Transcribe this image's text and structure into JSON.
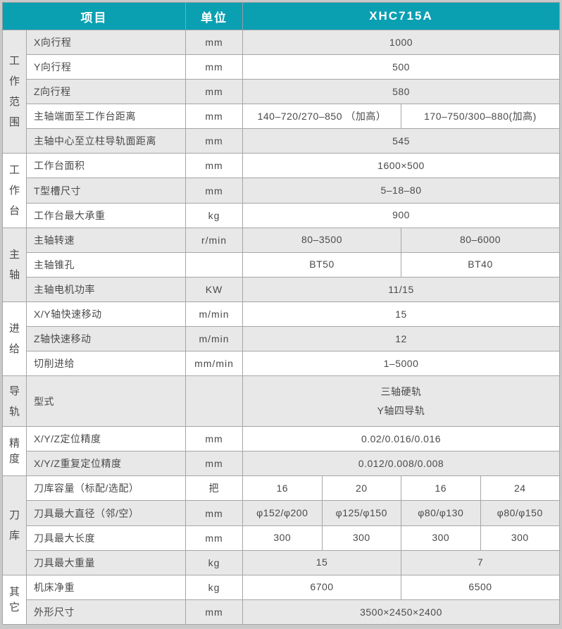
{
  "colors": {
    "accent_teal": "#0aa0b2",
    "header_text": "#ffffff",
    "row_gray": "#e8e8e8",
    "row_white": "#ffffff",
    "grid_border": "#a6a6a6",
    "outer_border": "#c9c9c9",
    "body_text": "#4a4a4a"
  },
  "table": {
    "header": {
      "item_col": "项目",
      "unit_col": "单位",
      "model_col": "XHC715A"
    },
    "sections": [
      {
        "category": "工作范围",
        "rows": [
          {
            "label": "X向行程",
            "unit": "mm",
            "values": [
              {
                "text": "1000",
                "span": 4
              }
            ]
          },
          {
            "label": "Y向行程",
            "unit": "mm",
            "values": [
              {
                "text": "500",
                "span": 4
              }
            ]
          },
          {
            "label": "Z向行程",
            "unit": "mm",
            "values": [
              {
                "text": "580",
                "span": 4
              }
            ]
          },
          {
            "label": "主轴端面至工作台距离",
            "unit": "mm",
            "values": [
              {
                "text": "140–720/270–850 （加高）",
                "span": 2
              },
              {
                "text": "170–750/300–880(加高)",
                "span": 2
              }
            ]
          },
          {
            "label": "主轴中心至立柱导轨面距离",
            "unit": "mm",
            "values": [
              {
                "text": "545",
                "span": 4
              }
            ]
          }
        ]
      },
      {
        "category": "工作台",
        "rows": [
          {
            "label": "工作台面积",
            "unit": "mm",
            "values": [
              {
                "text": "1600×500",
                "span": 4
              }
            ]
          },
          {
            "label": "T型槽尺寸",
            "unit": "mm",
            "values": [
              {
                "text": "5–18–80",
                "span": 4
              }
            ]
          },
          {
            "label": "工作台最大承重",
            "unit": "kg",
            "values": [
              {
                "text": "900",
                "span": 4
              }
            ]
          }
        ]
      },
      {
        "category": "主轴",
        "rows": [
          {
            "label": "主轴转速",
            "unit": "r/min",
            "values": [
              {
                "text": "80–3500",
                "span": 2
              },
              {
                "text": "80–6000",
                "span": 2
              }
            ]
          },
          {
            "label": "主轴锥孔",
            "unit": "",
            "values": [
              {
                "text": "BT50",
                "span": 2
              },
              {
                "text": "BT40",
                "span": 2
              }
            ]
          },
          {
            "label": "主轴电机功率",
            "unit": "KW",
            "values": [
              {
                "text": "11/15",
                "span": 4
              }
            ]
          }
        ]
      },
      {
        "category": "进给",
        "rows": [
          {
            "label": "X/Y轴快速移动",
            "unit": "m/min",
            "values": [
              {
                "text": "15",
                "span": 4
              }
            ]
          },
          {
            "label": "Z轴快速移动",
            "unit": "m/min",
            "values": [
              {
                "text": "12",
                "span": 4
              }
            ]
          },
          {
            "label": "切削进给",
            "unit": "mm/min",
            "values": [
              {
                "text": "1–5000",
                "span": 4
              }
            ]
          }
        ]
      },
      {
        "category": "导轨",
        "rows": [
          {
            "label": "型式",
            "unit": "",
            "tall": true,
            "values": [
              {
                "text": "三轴硬轨\nY轴四导轨",
                "span": 4
              }
            ]
          }
        ]
      },
      {
        "category": "精度",
        "rows": [
          {
            "label": "X/Y/Z定位精度",
            "unit": "mm",
            "values": [
              {
                "text": "0.02/0.016/0.016",
                "span": 4
              }
            ]
          },
          {
            "label": "X/Y/Z重复定位精度",
            "unit": "mm",
            "values": [
              {
                "text": "0.012/0.008/0.008",
                "span": 4
              }
            ]
          }
        ]
      },
      {
        "category": "刀库",
        "rows": [
          {
            "label": "刀库容量（标配/选配）",
            "unit": "把",
            "values": [
              {
                "text": "16",
                "span": 1
              },
              {
                "text": "20",
                "span": 1
              },
              {
                "text": "16",
                "span": 1
              },
              {
                "text": "24",
                "span": 1
              }
            ]
          },
          {
            "label": "刀具最大直径（邻/空）",
            "unit": "mm",
            "values": [
              {
                "text": "φ152/φ200",
                "span": 1
              },
              {
                "text": "φ125/φ150",
                "span": 1
              },
              {
                "text": "φ80/φ130",
                "span": 1
              },
              {
                "text": "φ80/φ150",
                "span": 1
              }
            ]
          },
          {
            "label": "刀具最大长度",
            "unit": "mm",
            "values": [
              {
                "text": "300",
                "span": 1
              },
              {
                "text": "300",
                "span": 1
              },
              {
                "text": "300",
                "span": 1
              },
              {
                "text": "300",
                "span": 1
              }
            ]
          },
          {
            "label": "刀具最大重量",
            "unit": "kg",
            "values": [
              {
                "text": "15",
                "span": 2
              },
              {
                "text": "7",
                "span": 2
              }
            ]
          }
        ]
      },
      {
        "category": "其它",
        "rows": [
          {
            "label": "机床净重",
            "unit": "kg",
            "values": [
              {
                "text": "6700",
                "span": 2
              },
              {
                "text": "6500",
                "span": 2
              }
            ]
          },
          {
            "label": "外形尺寸",
            "unit": "mm",
            "values": [
              {
                "text": "3500×2450×2400",
                "span": 4
              }
            ]
          }
        ]
      }
    ]
  }
}
